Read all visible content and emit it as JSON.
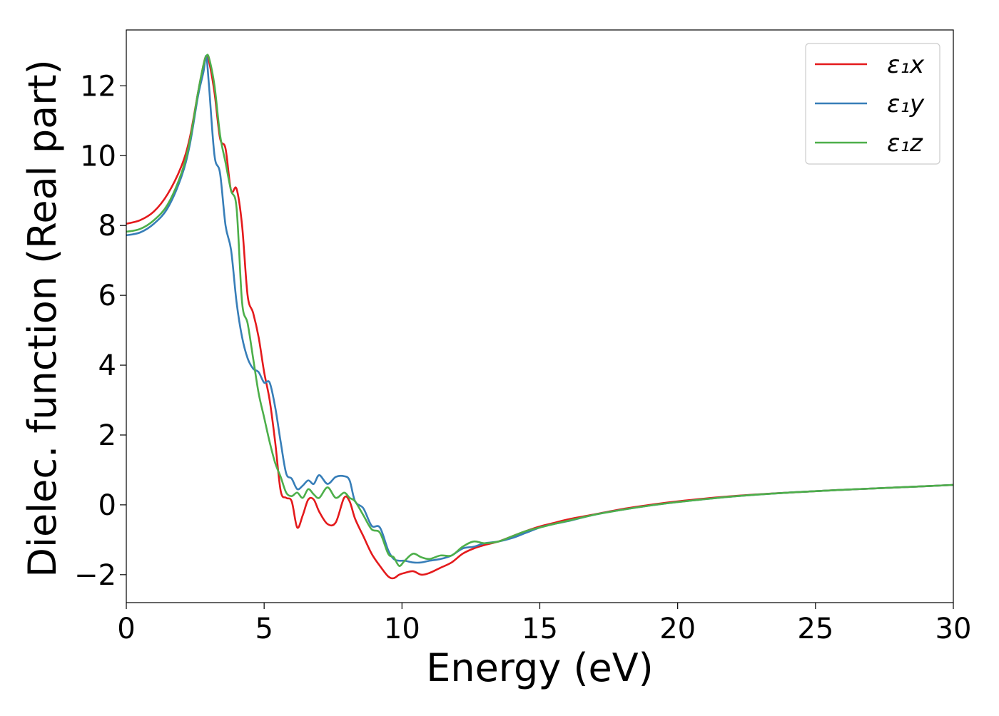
{
  "chart_data": {
    "type": "line",
    "title": "",
    "xlabel": "Energy (eV)",
    "ylabel": "Dielec. function (Real part)",
    "xlim": [
      0,
      30
    ],
    "ylim": [
      -2.8,
      13.6
    ],
    "xticks": [
      0,
      5,
      10,
      15,
      20,
      25,
      30
    ],
    "xtick_labels": [
      "0",
      "5",
      "10",
      "15",
      "20",
      "25",
      "30"
    ],
    "yticks": [
      -2,
      0,
      2,
      4,
      6,
      8,
      10,
      12
    ],
    "ytick_labels": [
      "−2",
      "0",
      "2",
      "4",
      "6",
      "8",
      "10",
      "12"
    ],
    "grid": false,
    "legend_position": "top-right",
    "series": [
      {
        "name": "ε₁x",
        "color": "#e41a1c",
        "x": [
          0,
          0.5,
          1,
          1.5,
          2,
          2.3,
          2.6,
          2.8,
          2.9,
          3.0,
          3.2,
          3.4,
          3.6,
          3.8,
          4.0,
          4.2,
          4.4,
          4.6,
          4.8,
          5.0,
          5.2,
          5.4,
          5.6,
          5.8,
          6.0,
          6.2,
          6.4,
          6.6,
          6.8,
          7.0,
          7.3,
          7.6,
          7.9,
          8.1,
          8.3,
          8.6,
          8.9,
          9.2,
          9.5,
          9.7,
          9.9,
          10.1,
          10.4,
          10.7,
          11.0,
          11.4,
          11.8,
          12.2,
          12.6,
          13.0,
          13.5,
          14.0,
          14.5,
          15.0,
          15.5,
          16.0,
          17.0,
          18.0,
          19.0,
          20.0,
          22.0,
          24.0,
          26.0,
          28.0,
          30.0
        ],
        "y": [
          8.05,
          8.15,
          8.4,
          8.9,
          9.7,
          10.5,
          11.8,
          12.6,
          12.85,
          12.7,
          11.8,
          10.5,
          10.2,
          9.0,
          9.05,
          8.0,
          6.0,
          5.5,
          4.8,
          3.8,
          3.0,
          1.8,
          0.4,
          0.2,
          0.1,
          -0.65,
          -0.3,
          0.15,
          0.15,
          -0.2,
          -0.55,
          -0.5,
          0.2,
          0.1,
          -0.4,
          -0.9,
          -1.4,
          -1.75,
          -2.05,
          -2.1,
          -2.0,
          -1.95,
          -1.9,
          -2.0,
          -1.95,
          -1.8,
          -1.65,
          -1.4,
          -1.25,
          -1.15,
          -1.05,
          -0.9,
          -0.75,
          -0.62,
          -0.52,
          -0.42,
          -0.27,
          -0.12,
          0.0,
          0.1,
          0.25,
          0.35,
          0.43,
          0.5,
          0.57
        ]
      },
      {
        "name": "ε₁y",
        "color": "#377eb8",
        "x": [
          0,
          0.5,
          1,
          1.5,
          2,
          2.3,
          2.6,
          2.8,
          2.9,
          3.0,
          3.2,
          3.4,
          3.6,
          3.8,
          4.0,
          4.2,
          4.4,
          4.6,
          4.8,
          5.0,
          5.2,
          5.4,
          5.6,
          5.8,
          6.0,
          6.2,
          6.4,
          6.6,
          6.8,
          7.0,
          7.3,
          7.6,
          7.9,
          8.1,
          8.3,
          8.6,
          8.9,
          9.2,
          9.5,
          9.7,
          9.9,
          10.1,
          10.4,
          10.7,
          11.0,
          11.4,
          11.8,
          12.2,
          12.6,
          13.0,
          13.5,
          14.0,
          14.5,
          15.0,
          15.5,
          16.0,
          17.0,
          18.0,
          19.0,
          20.0,
          22.0,
          24.0,
          26.0,
          28.0,
          30.0
        ],
        "y": [
          7.72,
          7.8,
          8.05,
          8.5,
          9.4,
          10.3,
          11.7,
          12.4,
          12.85,
          12.0,
          10.0,
          9.5,
          8.0,
          7.3,
          5.8,
          4.8,
          4.2,
          3.9,
          3.8,
          3.5,
          3.5,
          2.8,
          1.8,
          0.9,
          0.75,
          0.45,
          0.55,
          0.7,
          0.6,
          0.85,
          0.6,
          0.8,
          0.82,
          0.7,
          0.1,
          -0.1,
          -0.6,
          -0.65,
          -1.3,
          -1.55,
          -1.6,
          -1.6,
          -1.65,
          -1.65,
          -1.6,
          -1.55,
          -1.45,
          -1.25,
          -1.2,
          -1.1,
          -1.05,
          -0.95,
          -0.8,
          -0.65,
          -0.55,
          -0.47,
          -0.28,
          -0.14,
          -0.02,
          0.08,
          0.24,
          0.35,
          0.43,
          0.5,
          0.57
        ]
      },
      {
        "name": "ε₁z",
        "color": "#4daf4a",
        "x": [
          0,
          0.5,
          1,
          1.5,
          2,
          2.3,
          2.6,
          2.8,
          2.9,
          3.0,
          3.2,
          3.4,
          3.6,
          3.8,
          4.0,
          4.2,
          4.4,
          4.6,
          4.8,
          5.0,
          5.2,
          5.4,
          5.6,
          5.8,
          6.0,
          6.2,
          6.4,
          6.6,
          6.8,
          7.0,
          7.3,
          7.6,
          7.9,
          8.1,
          8.3,
          8.6,
          8.9,
          9.2,
          9.5,
          9.7,
          9.9,
          10.1,
          10.4,
          10.7,
          11.0,
          11.4,
          11.8,
          12.2,
          12.6,
          13.0,
          13.5,
          14.0,
          14.5,
          15.0,
          15.5,
          16.0,
          17.0,
          18.0,
          19.0,
          20.0,
          22.0,
          24.0,
          26.0,
          28.0,
          30.0
        ],
        "y": [
          7.82,
          7.9,
          8.15,
          8.6,
          9.5,
          10.4,
          11.8,
          12.6,
          12.85,
          12.8,
          12.0,
          10.6,
          9.8,
          9.0,
          8.5,
          5.8,
          5.2,
          4.2,
          3.2,
          2.5,
          1.8,
          1.2,
          0.8,
          0.35,
          0.25,
          0.35,
          0.2,
          0.45,
          0.3,
          0.2,
          0.5,
          0.2,
          0.35,
          0.2,
          0.1,
          -0.3,
          -0.7,
          -0.8,
          -1.4,
          -1.5,
          -1.75,
          -1.6,
          -1.4,
          -1.5,
          -1.55,
          -1.45,
          -1.45,
          -1.2,
          -1.05,
          -1.1,
          -1.05,
          -0.9,
          -0.75,
          -0.65,
          -0.55,
          -0.46,
          -0.28,
          -0.14,
          -0.02,
          0.08,
          0.24,
          0.35,
          0.43,
          0.5,
          0.57
        ]
      }
    ]
  }
}
